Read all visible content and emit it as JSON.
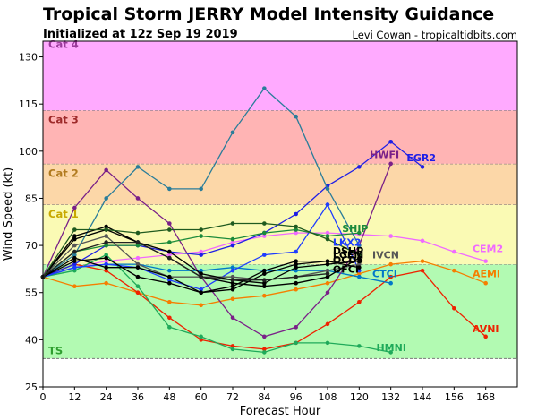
{
  "header": {
    "title": "Tropical Storm JERRY Model Intensity Guidance",
    "subtitle": "Initialized at 12z Sep 19 2019",
    "credit": "Levi Cowan - tropicaltidbits.com"
  },
  "chart_data": {
    "type": "line",
    "xlabel": "Forecast Hour",
    "ylabel": "Wind Speed (kt)",
    "xlim": [
      0,
      180
    ],
    "ylim": [
      25,
      135
    ],
    "xticks": [
      0,
      12,
      24,
      36,
      48,
      60,
      72,
      84,
      96,
      108,
      120,
      132,
      144,
      156,
      168
    ],
    "yticks": [
      25,
      40,
      55,
      70,
      85,
      100,
      115,
      130
    ],
    "grid": false,
    "legend": "none",
    "bands": [
      {
        "name": "TS",
        "from": 34,
        "to": 64,
        "color": "#b2fab2",
        "label_color": "#2e9e2e"
      },
      {
        "name": "Cat 1",
        "from": 64,
        "to": 83,
        "color": "#fafab4",
        "label_color": "#c8a800"
      },
      {
        "name": "Cat 2",
        "from": 83,
        "to": 96,
        "color": "#fcd7a8",
        "label_color": "#b07a1e"
      },
      {
        "name": "Cat 3",
        "from": 96,
        "to": 113,
        "color": "#ffb4b4",
        "label_color": "#9e2a2a"
      },
      {
        "name": "Cat 4",
        "from": 113,
        "to": 137,
        "color": "#ffaaff",
        "label_color": "#9a3a9a"
      }
    ],
    "series": [
      {
        "name": "CEM2",
        "color": "#f06aff",
        "x": [
          0,
          12,
          24,
          36,
          48,
          60,
          72,
          84,
          96,
          108,
          120,
          132,
          144,
          156,
          168
        ],
        "y": [
          60,
          63,
          65,
          66,
          67,
          68,
          71,
          73,
          74,
          74,
          73.5,
          73,
          71.5,
          68,
          65
        ]
      },
      {
        "name": "AEMI",
        "color": "#f57e00",
        "x": [
          0,
          12,
          24,
          36,
          48,
          60,
          72,
          84,
          96,
          108,
          120,
          132,
          144,
          156,
          168
        ],
        "y": [
          60,
          57,
          58,
          55,
          52,
          51,
          53,
          54,
          56,
          58,
          61,
          64,
          65,
          62,
          58
        ]
      },
      {
        "name": "AVNI",
        "color": "#ee2200",
        "x": [
          0,
          12,
          24,
          36,
          48,
          60,
          72,
          84,
          96,
          108,
          120,
          132,
          144,
          156,
          168
        ],
        "y": [
          60,
          64,
          62,
          55,
          47,
          40,
          38,
          37,
          39,
          45,
          52,
          60,
          62,
          50,
          41
        ]
      },
      {
        "name": "HMNI",
        "color": "#1faa5a",
        "x": [
          0,
          12,
          24,
          36,
          48,
          60,
          72,
          84,
          96,
          108,
          120,
          132
        ],
        "y": [
          60,
          62,
          67,
          57,
          44,
          41,
          37,
          36,
          39,
          39,
          38,
          36
        ]
      },
      {
        "name": "CTCI",
        "color": "#0078c8",
        "x": [
          0,
          12,
          24,
          36,
          48,
          60,
          72,
          84,
          96,
          108,
          120,
          132
        ],
        "y": [
          60,
          63,
          64,
          64,
          62,
          62,
          63,
          62,
          62,
          62,
          60,
          58
        ]
      },
      {
        "name": "HWFI",
        "color": "#7a2088",
        "x": [
          0,
          12,
          24,
          36,
          48,
          60,
          72,
          84,
          96,
          108,
          120,
          132
        ],
        "y": [
          60,
          82,
          94,
          85,
          77,
          60,
          47,
          41,
          44,
          55,
          70,
          96
        ]
      },
      {
        "name": "EGR2",
        "color": "#1e1ee6",
        "x": [
          0,
          12,
          24,
          36,
          48,
          60,
          72,
          84,
          96,
          108,
          120,
          132,
          144
        ],
        "y": [
          60,
          64,
          70,
          70,
          68,
          67,
          70,
          74,
          80,
          89,
          95,
          103,
          95
        ]
      },
      {
        "name": "",
        "color": "#2a7d9a",
        "x": [
          0,
          12,
          24,
          36,
          48,
          60,
          72,
          84,
          96,
          108,
          120
        ],
        "y": [
          60,
          67,
          85,
          95,
          88,
          88,
          106,
          120,
          111,
          88,
          70
        ]
      },
      {
        "name": "LKX2",
        "color": "#1e3cff",
        "x": [
          0,
          12,
          24,
          36,
          48,
          60,
          72,
          84,
          96,
          108,
          120
        ],
        "y": [
          60,
          63,
          64,
          63,
          59,
          56,
          62,
          67,
          68,
          83,
          62
        ]
      },
      {
        "name": "SHIP",
        "color": "#1a8a3a",
        "x": [
          0,
          12,
          24,
          36,
          48,
          60,
          72,
          84,
          96,
          108,
          120
        ],
        "y": [
          60,
          68,
          70,
          70,
          71,
          73,
          72,
          74,
          75,
          73,
          74
        ]
      },
      {
        "name": "IVCN",
        "color": "#555555",
        "x": [
          0,
          12,
          24,
          36,
          48,
          60,
          72,
          84,
          96,
          108,
          120
        ],
        "y": [
          60,
          70,
          73,
          64,
          60,
          60,
          60,
          59,
          60,
          62,
          64
        ]
      },
      {
        "name": "DSHP",
        "color": "#000000",
        "x": [
          0,
          12,
          24,
          36,
          48,
          60,
          72,
          84,
          96,
          108,
          120
        ],
        "y": [
          60,
          72,
          75,
          71,
          66,
          60,
          58,
          57,
          58,
          60,
          66
        ]
      },
      {
        "name": "LGEM",
        "color": "#000000",
        "x": [
          0,
          12,
          24,
          36,
          48,
          60,
          72,
          84,
          96,
          108,
          120
        ],
        "y": [
          60,
          73,
          76,
          71,
          68,
          61,
          59,
          58,
          63,
          64,
          65
        ]
      },
      {
        "name": "OCD5",
        "color": "#000000",
        "x": [
          0,
          12,
          24,
          36,
          48,
          60,
          72,
          84,
          96,
          108,
          120
        ],
        "y": [
          60,
          65,
          66,
          60,
          58,
          55,
          56,
          61,
          64,
          65,
          63
        ]
      },
      {
        "name": "OFCI",
        "color": "#000000",
        "x": [
          0,
          12,
          24,
          36,
          48,
          60,
          72,
          84,
          96,
          108,
          120
        ],
        "y": [
          60,
          66,
          63,
          63,
          60,
          55,
          57,
          62,
          65,
          65,
          65
        ]
      },
      {
        "name": "",
        "color": "#1f5a1f",
        "x": [
          0,
          12,
          24,
          36,
          48,
          60,
          72,
          84,
          96,
          108,
          120
        ],
        "y": [
          60,
          75,
          75,
          74,
          75,
          75,
          77,
          77,
          76,
          72,
          67
        ]
      },
      {
        "name": "",
        "color": "#222222",
        "x": [
          0,
          12,
          24,
          36,
          48,
          60,
          72,
          84,
          96,
          108
        ],
        "y": [
          60,
          68,
          71,
          71,
          66,
          60,
          59,
          59,
          60,
          61
        ]
      }
    ],
    "labels": [
      {
        "text": "CEM2",
        "x": 163,
        "y": 69,
        "color": "#f06aff"
      },
      {
        "text": "AEMI",
        "x": 163,
        "y": 61,
        "color": "#f57e00"
      },
      {
        "text": "AVNI",
        "x": 163,
        "y": 43.5,
        "color": "#ee2200"
      },
      {
        "text": "HMNI",
        "x": 126.5,
        "y": 37.5,
        "color": "#1faa5a"
      },
      {
        "text": "CTCI",
        "x": 125,
        "y": 61,
        "color": "#0078c8"
      },
      {
        "text": "IVCN",
        "x": 125,
        "y": 67,
        "color": "#555555"
      },
      {
        "text": "HWFI",
        "x": 124,
        "y": 99,
        "color": "#7a2088"
      },
      {
        "text": "EGR2",
        "x": 138,
        "y": 98,
        "color": "#1e1ee6"
      },
      {
        "text": "SHIP",
        "x": 113.5,
        "y": 75.5,
        "color": "#1a8a3a"
      },
      {
        "text": "LKX2",
        "x": 110,
        "y": 71,
        "color": "#1e3cff"
      },
      {
        "text": "DSHP",
        "x": 110,
        "y": 68.3,
        "color": "#000000"
      },
      {
        "text": "LGEM",
        "x": 110,
        "y": 67,
        "color": "#000000"
      },
      {
        "text": "OCD5",
        "x": 110,
        "y": 65.5,
        "color": "#000000"
      },
      {
        "text": "OFCI",
        "x": 110,
        "y": 62.5,
        "color": "#000000"
      }
    ]
  }
}
